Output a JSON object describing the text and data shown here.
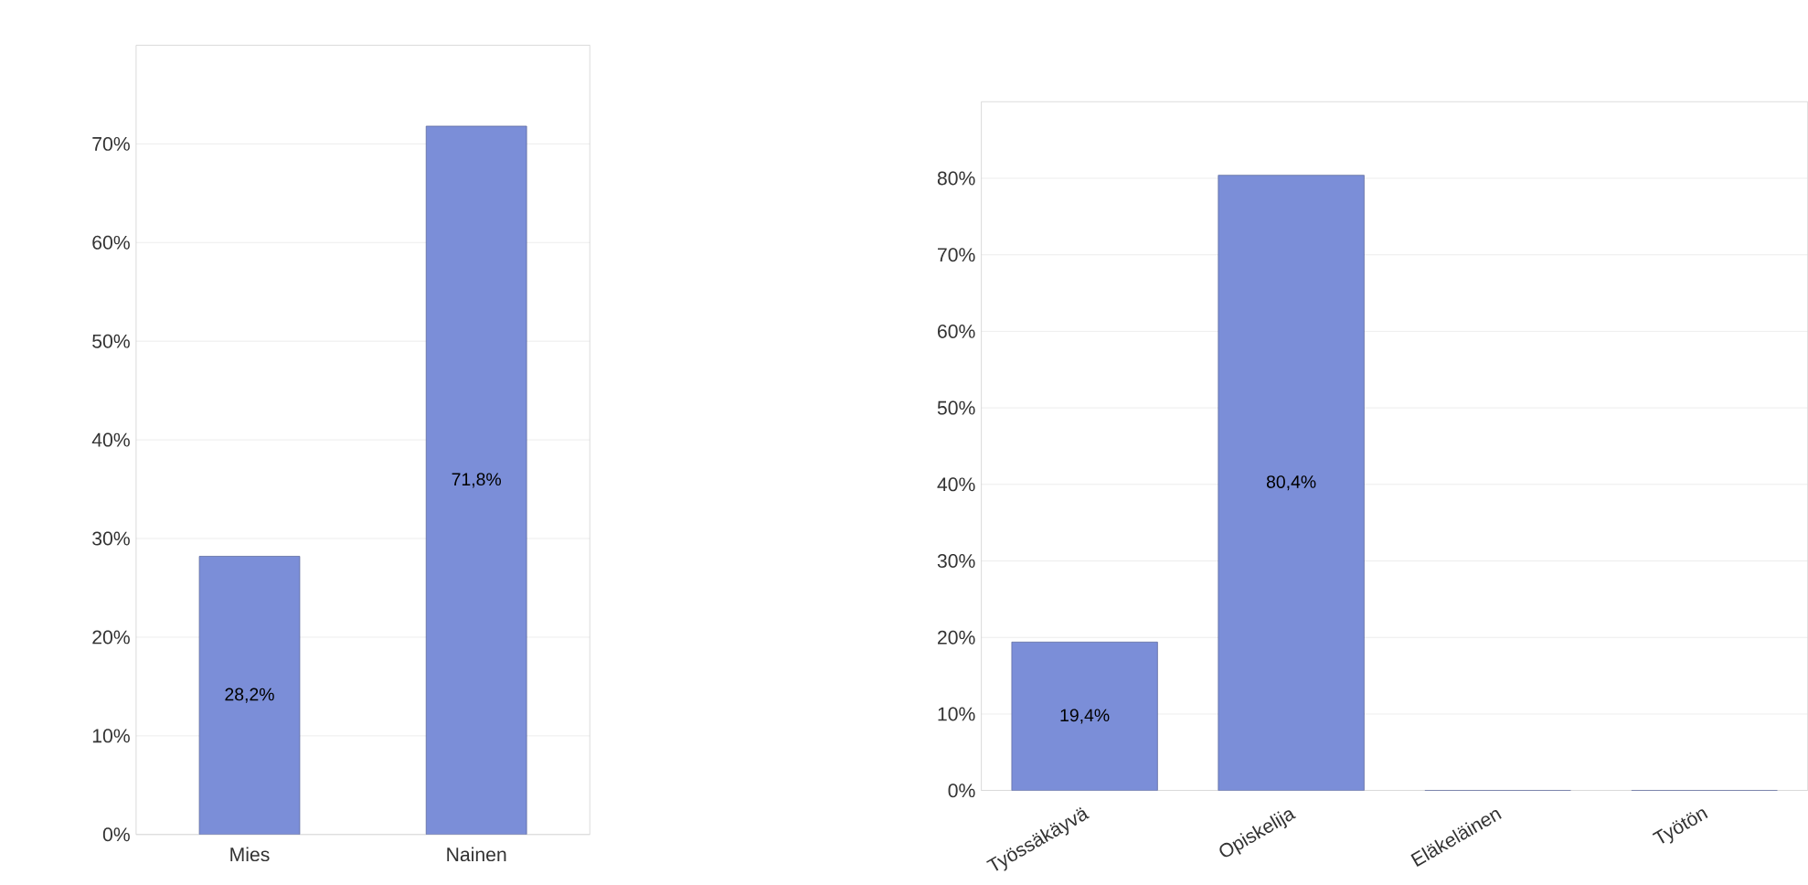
{
  "chart_data": [
    {
      "type": "bar",
      "categories": [
        "Mies",
        "Nainen"
      ],
      "values": [
        28.2,
        71.8
      ],
      "value_labels": [
        "28,2%",
        "71,8%"
      ],
      "color": "#7b8ed8",
      "ylim": [
        0,
        80
      ],
      "yticks": [
        {
          "value": 0,
          "label": "0%"
        },
        {
          "value": 10,
          "label": "10%"
        },
        {
          "value": 20,
          "label": "20%"
        },
        {
          "value": 30,
          "label": "30%"
        },
        {
          "value": 40,
          "label": "40%"
        },
        {
          "value": 50,
          "label": "50%"
        },
        {
          "value": 60,
          "label": "60%"
        },
        {
          "value": 70,
          "label": "70%"
        }
      ],
      "grid": "y"
    },
    {
      "type": "bar",
      "categories": [
        "Työssäkäyvä",
        "Opiskelija",
        "Eläkeläinen",
        "Työtön"
      ],
      "values": [
        19.4,
        80.4,
        0,
        0
      ],
      "value_labels": [
        "19,4%",
        "80,4%",
        null,
        null
      ],
      "color": "#7b8ed8",
      "ylim": [
        0,
        90
      ],
      "yticks": [
        {
          "value": 0,
          "label": "0%"
        },
        {
          "value": 10,
          "label": "10%"
        },
        {
          "value": 20,
          "label": "20%"
        },
        {
          "value": 30,
          "label": "30%"
        },
        {
          "value": 40,
          "label": "40%"
        },
        {
          "value": 50,
          "label": "50%"
        },
        {
          "value": 60,
          "label": "60%"
        },
        {
          "value": 70,
          "label": "70%"
        },
        {
          "value": 80,
          "label": "80%"
        }
      ],
      "grid": "y"
    }
  ]
}
